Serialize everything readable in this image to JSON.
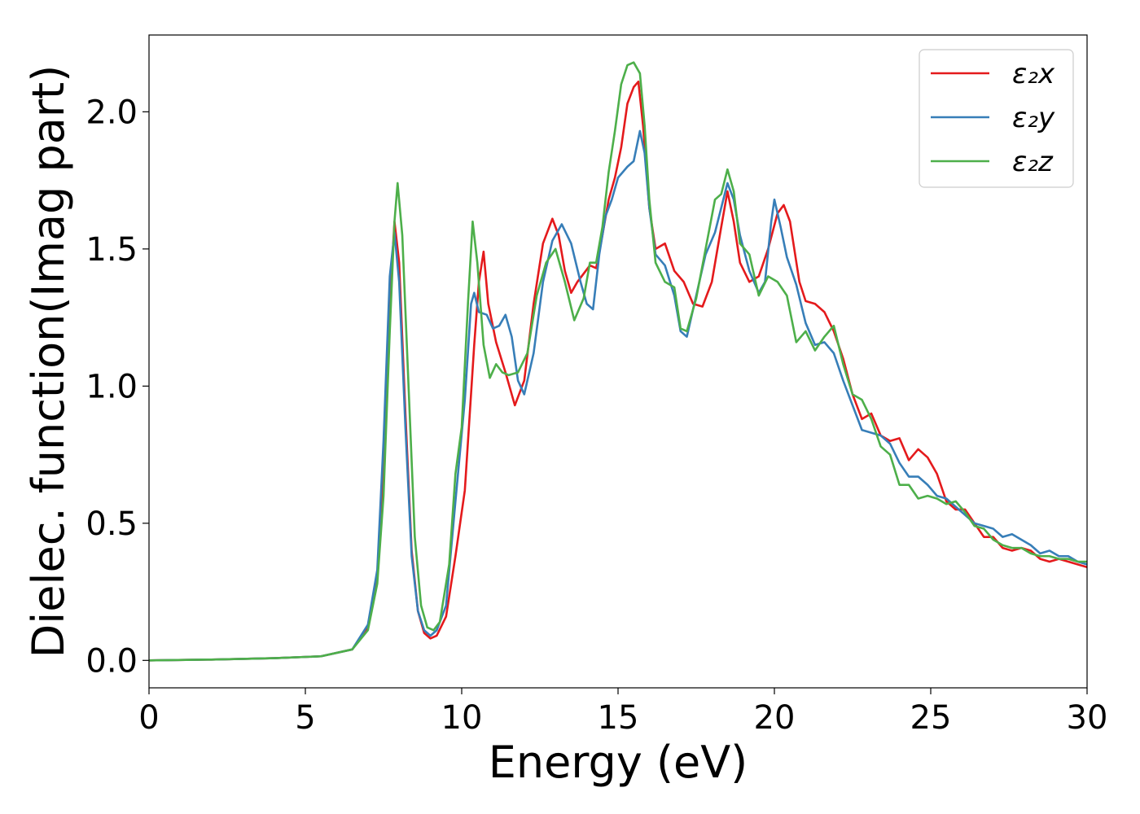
{
  "chart_data": {
    "type": "line",
    "title": "",
    "xlabel": "Energy (eV)",
    "ylabel": "Dielec. function(Imag part)",
    "xlim": [
      0,
      30
    ],
    "ylim": [
      -0.1,
      2.28
    ],
    "xticks": [
      0,
      5,
      10,
      15,
      20,
      25,
      30
    ],
    "xtick_labels": [
      "0",
      "5",
      "10",
      "15",
      "20",
      "25",
      "30"
    ],
    "yticks": [
      0.0,
      0.5,
      1.0,
      1.5,
      2.0
    ],
    "ytick_labels": [
      "0.0",
      "0.5",
      "1.0",
      "1.5",
      "2.0"
    ],
    "grid": false,
    "legend_position": "top-right",
    "series": [
      {
        "name": "ε₂x",
        "color": "#e41a1c",
        "points": [
          [
            0,
            0.0
          ],
          [
            2,
            0.003
          ],
          [
            4,
            0.008
          ],
          [
            5.5,
            0.015
          ],
          [
            6.5,
            0.04
          ],
          [
            7.0,
            0.12
          ],
          [
            7.3,
            0.3
          ],
          [
            7.5,
            0.7
          ],
          [
            7.7,
            1.3
          ],
          [
            7.85,
            1.6
          ],
          [
            8.0,
            1.45
          ],
          [
            8.2,
            0.9
          ],
          [
            8.4,
            0.4
          ],
          [
            8.6,
            0.18
          ],
          [
            8.8,
            0.1
          ],
          [
            9.0,
            0.08
          ],
          [
            9.2,
            0.09
          ],
          [
            9.5,
            0.16
          ],
          [
            9.8,
            0.38
          ],
          [
            10.1,
            0.62
          ],
          [
            10.4,
            1.15
          ],
          [
            10.55,
            1.38
          ],
          [
            10.7,
            1.49
          ],
          [
            10.85,
            1.3
          ],
          [
            11.1,
            1.16
          ],
          [
            11.4,
            1.05
          ],
          [
            11.7,
            0.93
          ],
          [
            12.0,
            1.02
          ],
          [
            12.3,
            1.3
          ],
          [
            12.6,
            1.52
          ],
          [
            12.9,
            1.61
          ],
          [
            13.1,
            1.55
          ],
          [
            13.3,
            1.42
          ],
          [
            13.5,
            1.34
          ],
          [
            13.7,
            1.38
          ],
          [
            13.9,
            1.41
          ],
          [
            14.1,
            1.44
          ],
          [
            14.3,
            1.43
          ],
          [
            14.5,
            1.55
          ],
          [
            14.7,
            1.68
          ],
          [
            14.9,
            1.76
          ],
          [
            15.1,
            1.87
          ],
          [
            15.3,
            2.03
          ],
          [
            15.5,
            2.09
          ],
          [
            15.65,
            2.11
          ],
          [
            15.8,
            1.95
          ],
          [
            16.0,
            1.65
          ],
          [
            16.2,
            1.5
          ],
          [
            16.5,
            1.52
          ],
          [
            16.8,
            1.42
          ],
          [
            17.1,
            1.38
          ],
          [
            17.4,
            1.3
          ],
          [
            17.7,
            1.29
          ],
          [
            18.0,
            1.38
          ],
          [
            18.3,
            1.58
          ],
          [
            18.5,
            1.71
          ],
          [
            18.7,
            1.6
          ],
          [
            18.9,
            1.45
          ],
          [
            19.2,
            1.38
          ],
          [
            19.5,
            1.4
          ],
          [
            19.8,
            1.5
          ],
          [
            20.1,
            1.63
          ],
          [
            20.3,
            1.66
          ],
          [
            20.5,
            1.6
          ],
          [
            20.8,
            1.38
          ],
          [
            21.0,
            1.31
          ],
          [
            21.3,
            1.3
          ],
          [
            21.6,
            1.27
          ],
          [
            21.9,
            1.2
          ],
          [
            22.2,
            1.1
          ],
          [
            22.5,
            0.97
          ],
          [
            22.8,
            0.88
          ],
          [
            23.1,
            0.9
          ],
          [
            23.4,
            0.82
          ],
          [
            23.7,
            0.8
          ],
          [
            24.0,
            0.81
          ],
          [
            24.3,
            0.73
          ],
          [
            24.6,
            0.77
          ],
          [
            24.9,
            0.74
          ],
          [
            25.2,
            0.68
          ],
          [
            25.5,
            0.58
          ],
          [
            25.8,
            0.55
          ],
          [
            26.1,
            0.55
          ],
          [
            26.4,
            0.5
          ],
          [
            26.7,
            0.45
          ],
          [
            27.0,
            0.45
          ],
          [
            27.3,
            0.41
          ],
          [
            27.6,
            0.4
          ],
          [
            27.9,
            0.41
          ],
          [
            28.2,
            0.4
          ],
          [
            28.5,
            0.37
          ],
          [
            28.8,
            0.36
          ],
          [
            29.1,
            0.37
          ],
          [
            29.4,
            0.36
          ],
          [
            29.7,
            0.35
          ],
          [
            30,
            0.34
          ]
        ]
      },
      {
        "name": "ε₂y",
        "color": "#377eb8",
        "points": [
          [
            0,
            0.0
          ],
          [
            2,
            0.003
          ],
          [
            4,
            0.008
          ],
          [
            5.5,
            0.015
          ],
          [
            6.5,
            0.04
          ],
          [
            7.0,
            0.13
          ],
          [
            7.3,
            0.33
          ],
          [
            7.5,
            0.8
          ],
          [
            7.7,
            1.4
          ],
          [
            7.85,
            1.56
          ],
          [
            8.0,
            1.38
          ],
          [
            8.2,
            0.85
          ],
          [
            8.4,
            0.38
          ],
          [
            8.6,
            0.18
          ],
          [
            8.8,
            0.11
          ],
          [
            9.0,
            0.09
          ],
          [
            9.2,
            0.11
          ],
          [
            9.5,
            0.2
          ],
          [
            9.8,
            0.58
          ],
          [
            10.1,
            0.95
          ],
          [
            10.3,
            1.3
          ],
          [
            10.4,
            1.34
          ],
          [
            10.55,
            1.27
          ],
          [
            10.8,
            1.26
          ],
          [
            11.0,
            1.21
          ],
          [
            11.2,
            1.22
          ],
          [
            11.4,
            1.26
          ],
          [
            11.6,
            1.18
          ],
          [
            11.8,
            1.02
          ],
          [
            12.0,
            0.97
          ],
          [
            12.3,
            1.12
          ],
          [
            12.6,
            1.38
          ],
          [
            12.9,
            1.53
          ],
          [
            13.2,
            1.59
          ],
          [
            13.5,
            1.52
          ],
          [
            13.8,
            1.38
          ],
          [
            14.0,
            1.3
          ],
          [
            14.2,
            1.28
          ],
          [
            14.4,
            1.48
          ],
          [
            14.6,
            1.62
          ],
          [
            14.8,
            1.68
          ],
          [
            15.0,
            1.76
          ],
          [
            15.3,
            1.8
          ],
          [
            15.5,
            1.82
          ],
          [
            15.7,
            1.93
          ],
          [
            15.85,
            1.85
          ],
          [
            16.0,
            1.65
          ],
          [
            16.2,
            1.48
          ],
          [
            16.5,
            1.44
          ],
          [
            16.8,
            1.33
          ],
          [
            17.0,
            1.2
          ],
          [
            17.2,
            1.18
          ],
          [
            17.5,
            1.33
          ],
          [
            17.8,
            1.48
          ],
          [
            18.1,
            1.56
          ],
          [
            18.3,
            1.65
          ],
          [
            18.5,
            1.74
          ],
          [
            18.7,
            1.68
          ],
          [
            18.9,
            1.55
          ],
          [
            19.2,
            1.42
          ],
          [
            19.5,
            1.34
          ],
          [
            19.7,
            1.38
          ],
          [
            19.9,
            1.6
          ],
          [
            20.0,
            1.68
          ],
          [
            20.2,
            1.58
          ],
          [
            20.4,
            1.47
          ],
          [
            20.7,
            1.37
          ],
          [
            21.0,
            1.23
          ],
          [
            21.3,
            1.15
          ],
          [
            21.6,
            1.16
          ],
          [
            21.9,
            1.12
          ],
          [
            22.2,
            1.02
          ],
          [
            22.5,
            0.93
          ],
          [
            22.8,
            0.84
          ],
          [
            23.1,
            0.83
          ],
          [
            23.4,
            0.82
          ],
          [
            23.7,
            0.79
          ],
          [
            24.0,
            0.72
          ],
          [
            24.3,
            0.67
          ],
          [
            24.6,
            0.67
          ],
          [
            24.9,
            0.64
          ],
          [
            25.2,
            0.6
          ],
          [
            25.5,
            0.59
          ],
          [
            25.8,
            0.56
          ],
          [
            26.1,
            0.53
          ],
          [
            26.4,
            0.5
          ],
          [
            26.7,
            0.49
          ],
          [
            27.0,
            0.48
          ],
          [
            27.3,
            0.45
          ],
          [
            27.6,
            0.46
          ],
          [
            27.9,
            0.44
          ],
          [
            28.2,
            0.42
          ],
          [
            28.5,
            0.39
          ],
          [
            28.8,
            0.4
          ],
          [
            29.1,
            0.38
          ],
          [
            29.4,
            0.38
          ],
          [
            29.7,
            0.36
          ],
          [
            30,
            0.35
          ]
        ]
      },
      {
        "name": "ε₂z",
        "color": "#4daf4a",
        "points": [
          [
            0,
            0.0
          ],
          [
            2,
            0.003
          ],
          [
            4,
            0.008
          ],
          [
            5.5,
            0.015
          ],
          [
            6.5,
            0.04
          ],
          [
            7.0,
            0.11
          ],
          [
            7.3,
            0.28
          ],
          [
            7.5,
            0.6
          ],
          [
            7.7,
            1.2
          ],
          [
            7.85,
            1.6
          ],
          [
            7.95,
            1.74
          ],
          [
            8.1,
            1.55
          ],
          [
            8.3,
            1.0
          ],
          [
            8.5,
            0.45
          ],
          [
            8.7,
            0.2
          ],
          [
            8.9,
            0.12
          ],
          [
            9.1,
            0.11
          ],
          [
            9.3,
            0.14
          ],
          [
            9.6,
            0.35
          ],
          [
            9.8,
            0.68
          ],
          [
            10.0,
            0.85
          ],
          [
            10.2,
            1.3
          ],
          [
            10.35,
            1.6
          ],
          [
            10.5,
            1.45
          ],
          [
            10.7,
            1.15
          ],
          [
            10.9,
            1.03
          ],
          [
            11.1,
            1.08
          ],
          [
            11.3,
            1.05
          ],
          [
            11.5,
            1.04
          ],
          [
            11.8,
            1.05
          ],
          [
            12.1,
            1.12
          ],
          [
            12.4,
            1.33
          ],
          [
            12.7,
            1.45
          ],
          [
            13.0,
            1.5
          ],
          [
            13.3,
            1.38
          ],
          [
            13.6,
            1.24
          ],
          [
            13.9,
            1.32
          ],
          [
            14.1,
            1.45
          ],
          [
            14.3,
            1.45
          ],
          [
            14.5,
            1.58
          ],
          [
            14.7,
            1.78
          ],
          [
            14.9,
            1.93
          ],
          [
            15.1,
            2.1
          ],
          [
            15.3,
            2.17
          ],
          [
            15.5,
            2.18
          ],
          [
            15.7,
            2.14
          ],
          [
            15.85,
            1.95
          ],
          [
            16.0,
            1.68
          ],
          [
            16.2,
            1.45
          ],
          [
            16.5,
            1.38
          ],
          [
            16.8,
            1.36
          ],
          [
            17.0,
            1.21
          ],
          [
            17.2,
            1.2
          ],
          [
            17.5,
            1.32
          ],
          [
            17.8,
            1.5
          ],
          [
            18.1,
            1.68
          ],
          [
            18.3,
            1.7
          ],
          [
            18.5,
            1.79
          ],
          [
            18.7,
            1.71
          ],
          [
            18.9,
            1.52
          ],
          [
            19.2,
            1.48
          ],
          [
            19.5,
            1.33
          ],
          [
            19.8,
            1.4
          ],
          [
            20.1,
            1.38
          ],
          [
            20.4,
            1.33
          ],
          [
            20.7,
            1.16
          ],
          [
            21.0,
            1.2
          ],
          [
            21.3,
            1.13
          ],
          [
            21.6,
            1.18
          ],
          [
            21.9,
            1.22
          ],
          [
            22.2,
            1.08
          ],
          [
            22.5,
            0.97
          ],
          [
            22.8,
            0.95
          ],
          [
            23.1,
            0.88
          ],
          [
            23.4,
            0.78
          ],
          [
            23.7,
            0.75
          ],
          [
            24.0,
            0.64
          ],
          [
            24.3,
            0.64
          ],
          [
            24.6,
            0.59
          ],
          [
            24.9,
            0.6
          ],
          [
            25.2,
            0.59
          ],
          [
            25.5,
            0.57
          ],
          [
            25.8,
            0.58
          ],
          [
            26.1,
            0.54
          ],
          [
            26.4,
            0.49
          ],
          [
            26.7,
            0.48
          ],
          [
            27.0,
            0.44
          ],
          [
            27.3,
            0.42
          ],
          [
            27.6,
            0.41
          ],
          [
            27.9,
            0.41
          ],
          [
            28.2,
            0.39
          ],
          [
            28.5,
            0.38
          ],
          [
            28.8,
            0.38
          ],
          [
            29.1,
            0.37
          ],
          [
            29.4,
            0.37
          ],
          [
            29.7,
            0.36
          ],
          [
            30,
            0.36
          ]
        ]
      }
    ]
  }
}
